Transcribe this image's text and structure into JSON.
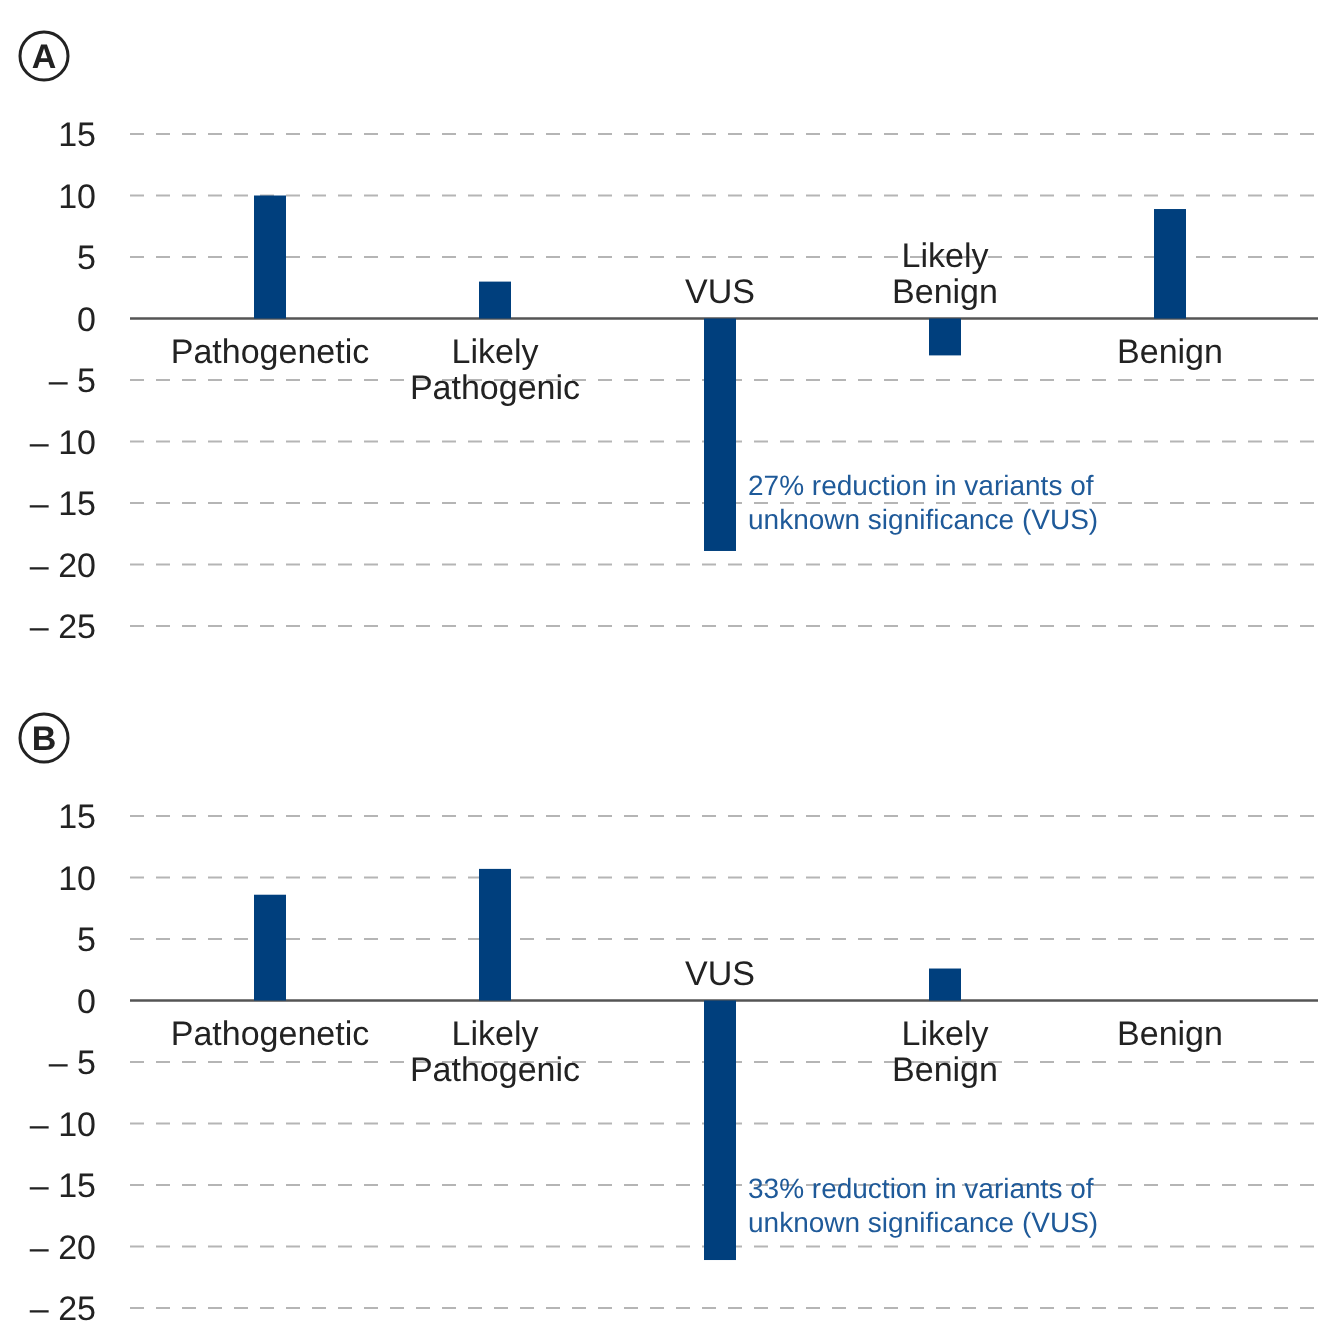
{
  "chart_data": [
    {
      "type": "bar",
      "title": "A",
      "categories": [
        "Pathogenetic",
        "Likely Pathogenic",
        "VUS",
        "Likely Benign",
        "Benign"
      ],
      "values": [
        10.0,
        3.0,
        -18.9,
        -3.0,
        8.9
      ],
      "color": "#003f7d",
      "ylim": [
        -25,
        15
      ],
      "yticks": [
        15,
        10,
        5,
        0,
        {
          "value": -5,
          "label": "– 5"
        },
        {
          "value": -10,
          "label": "– 10"
        },
        {
          "value": -15,
          "label": "– 15"
        },
        {
          "value": -20,
          "label": "– 20"
        },
        {
          "value": -25,
          "label": "– 25"
        }
      ],
      "grid": "y",
      "annotations": [
        "27% reduction in variants of unknown significance (VUS)"
      ]
    },
    {
      "type": "bar",
      "title": "B",
      "categories": [
        "Pathogenetic",
        "Likely Pathogenic",
        "VUS",
        "Likely Benign",
        "Benign"
      ],
      "values": [
        8.6,
        10.7,
        -21.1,
        2.6,
        0
      ],
      "color": "#003f7d",
      "ylim": [
        -25,
        15
      ],
      "yticks": [
        15,
        10,
        5,
        0,
        {
          "value": -5,
          "label": "– 5"
        },
        {
          "value": -10,
          "label": "– 10"
        },
        {
          "value": -15,
          "label": "– 15"
        },
        {
          "value": -20,
          "label": "– 20"
        },
        {
          "value": -25,
          "label": "– 25"
        }
      ],
      "grid": "y",
      "annotations": [
        "33% reduction in variants of unknown significance (VUS)"
      ]
    }
  ]
}
